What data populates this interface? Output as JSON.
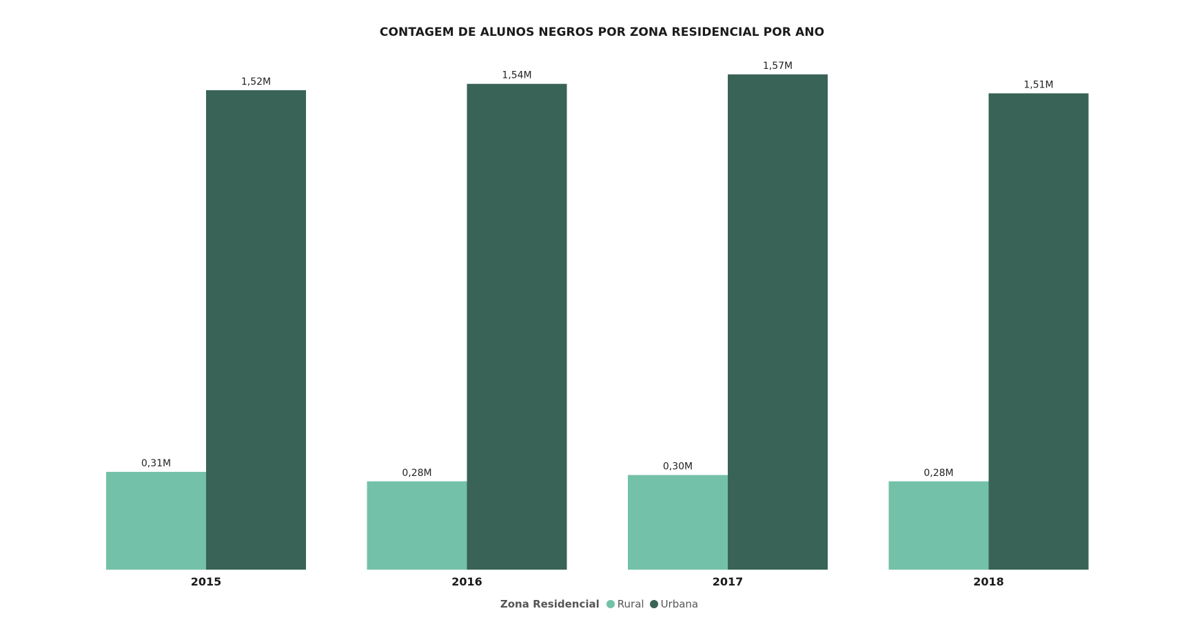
{
  "chart_data": {
    "type": "bar",
    "title": "CONTAGEM DE ALUNOS NEGROS POR ZONA RESIDENCIAL POR ANO",
    "categories": [
      "2015",
      "2016",
      "2017",
      "2018"
    ],
    "series": [
      {
        "name": "Rural",
        "color": "#73c1a8",
        "values": [
          0.31,
          0.28,
          0.3,
          0.28
        ],
        "labels": [
          "0,31M",
          "0,28M",
          "0,30M",
          "0,28M"
        ]
      },
      {
        "name": "Urbana",
        "color": "#3a6357",
        "values": [
          1.52,
          1.54,
          1.57,
          1.51
        ],
        "labels": [
          "1,52M",
          "1,54M",
          "1,57M",
          "1,51M"
        ]
      }
    ],
    "ylim": [
      0,
      1.57
    ],
    "grid": false,
    "legend": {
      "title": "Zona Residencial",
      "position": "bottom-center"
    }
  }
}
